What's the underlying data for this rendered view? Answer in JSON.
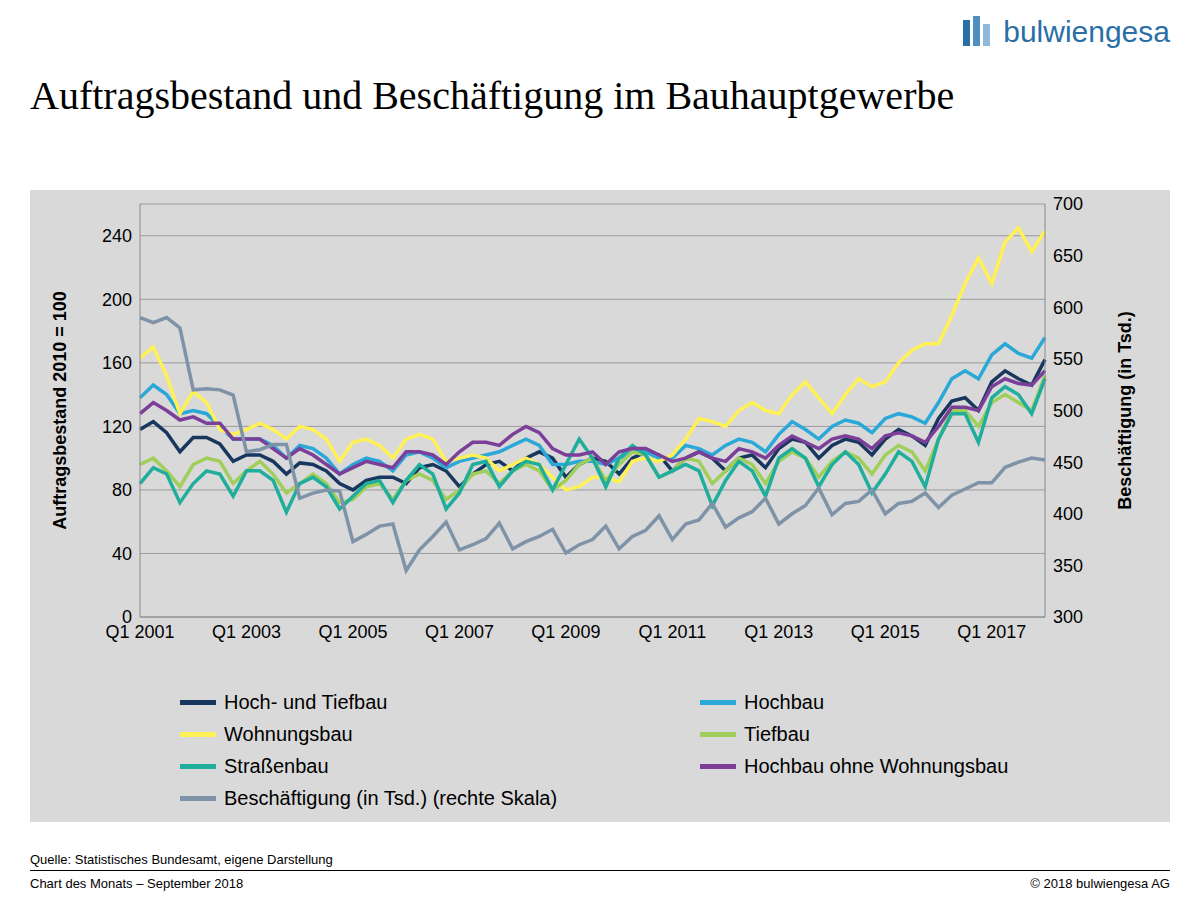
{
  "chart_data": {
    "type": "line",
    "title": "Auftragsbestand und Beschäftigung im Bauhauptgewerbe",
    "logo": "bulwiengesa",
    "source": "Quelle: Statistisches Bundesamt, eigene Darstellung",
    "footer_left": "Chart des Monats – September 2018",
    "footer_right": "© 2018 bulwiengesa AG",
    "y_label": "Auftragsbestand 2010 = 100",
    "y2_label": "Beschäftigung (in Tsd.)",
    "categories": [
      "Q1 2001",
      null,
      null,
      null,
      null,
      null,
      null,
      null,
      "Q1 2003",
      null,
      null,
      null,
      null,
      null,
      null,
      null,
      "Q1 2005",
      null,
      null,
      null,
      null,
      null,
      null,
      null,
      "Q1 2007",
      null,
      null,
      null,
      null,
      null,
      null,
      null,
      "Q1 2009",
      null,
      null,
      null,
      null,
      null,
      null,
      null,
      "Q1 2011",
      null,
      null,
      null,
      null,
      null,
      null,
      null,
      "Q1 2013",
      null,
      null,
      null,
      null,
      null,
      null,
      null,
      "Q1 2015",
      null,
      null,
      null,
      null,
      null,
      null,
      null,
      "Q1 2017",
      null,
      null,
      null,
      null
    ],
    "ylim": [
      0,
      260
    ],
    "yticks": [
      0,
      40,
      80,
      120,
      160,
      200,
      240
    ],
    "y2lim": [
      300,
      700
    ],
    "y2ticks": [
      300,
      350,
      400,
      450,
      500,
      550,
      600,
      650,
      700
    ],
    "grid": true,
    "legend": "bottom",
    "series": [
      {
        "name": "Hoch- und Tiefbau",
        "color": "#17375e",
        "values": [
          118,
          123,
          116,
          104,
          113,
          113,
          109,
          98,
          102,
          102,
          98,
          90,
          97,
          96,
          92,
          84,
          80,
          86,
          88,
          88,
          84,
          94,
          96,
          92,
          82,
          90,
          96,
          98,
          92,
          100,
          104,
          100,
          88,
          96,
          100,
          98,
          90,
          100,
          104,
          102,
          92,
          100,
          104,
          100,
          92,
          100,
          102,
          94,
          106,
          112,
          110,
          100,
          108,
          112,
          110,
          102,
          112,
          118,
          114,
          108,
          125,
          136,
          138,
          130,
          148,
          155,
          150,
          146,
          162
        ]
      },
      {
        "name": "Hochbau",
        "color": "#2aa8d8",
        "values": [
          138,
          146,
          140,
          128,
          130,
          128,
          120,
          112,
          112,
          112,
          108,
          100,
          108,
          106,
          100,
          90,
          96,
          100,
          98,
          92,
          102,
          104,
          100,
          94,
          98,
          100,
          102,
          104,
          108,
          112,
          108,
          96,
          96,
          98,
          98,
          96,
          100,
          104,
          104,
          100,
          100,
          108,
          106,
          102,
          108,
          112,
          110,
          104,
          115,
          123,
          118,
          112,
          120,
          124,
          122,
          116,
          125,
          128,
          126,
          122,
          135,
          150,
          155,
          150,
          165,
          172,
          166,
          163,
          176
        ]
      },
      {
        "name": "Wohnungsbau",
        "color": "#fff155",
        "values": [
          163,
          170,
          152,
          128,
          142,
          135,
          118,
          115,
          118,
          122,
          118,
          112,
          120,
          118,
          112,
          98,
          110,
          112,
          108,
          100,
          112,
          115,
          112,
          98,
          100,
          102,
          100,
          92,
          96,
          100,
          96,
          88,
          80,
          82,
          88,
          88,
          85,
          98,
          100,
          98,
          102,
          112,
          125,
          123,
          120,
          130,
          135,
          130,
          128,
          140,
          148,
          138,
          128,
          140,
          150,
          145,
          148,
          160,
          168,
          172,
          172,
          190,
          210,
          226,
          210,
          236,
          245,
          230,
          243
        ]
      },
      {
        "name": "Tiefbau",
        "color": "#9fcf5a",
        "values": [
          96,
          100,
          92,
          82,
          96,
          100,
          98,
          84,
          92,
          98,
          90,
          78,
          84,
          90,
          84,
          72,
          74,
          82,
          84,
          74,
          86,
          90,
          86,
          74,
          80,
          90,
          92,
          84,
          92,
          96,
          92,
          80,
          86,
          96,
          100,
          86,
          96,
          104,
          102,
          88,
          92,
          100,
          98,
          84,
          92,
          100,
          96,
          84,
          98,
          104,
          100,
          88,
          98,
          104,
          100,
          90,
          102,
          108,
          104,
          92,
          112,
          130,
          130,
          120,
          135,
          140,
          135,
          130,
          152
        ]
      },
      {
        "name": "Straßenbau",
        "color": "#1fae9c",
        "values": [
          84,
          94,
          90,
          72,
          84,
          92,
          90,
          76,
          92,
          92,
          86,
          66,
          84,
          88,
          82,
          68,
          76,
          84,
          86,
          72,
          86,
          96,
          90,
          68,
          78,
          96,
          98,
          82,
          92,
          98,
          96,
          80,
          96,
          112,
          100,
          82,
          100,
          108,
          102,
          88,
          92,
          96,
          92,
          70,
          86,
          98,
          92,
          76,
          100,
          106,
          100,
          82,
          96,
          104,
          96,
          78,
          90,
          104,
          98,
          82,
          112,
          128,
          128,
          110,
          138,
          145,
          140,
          128,
          150
        ]
      },
      {
        "name": "Hochbau ohne Wohnungsbau",
        "color": "#7b3f99",
        "values": [
          128,
          135,
          130,
          124,
          126,
          122,
          122,
          112,
          112,
          112,
          106,
          100,
          106,
          102,
          96,
          90,
          94,
          98,
          96,
          94,
          104,
          104,
          102,
          96,
          104,
          110,
          110,
          108,
          115,
          120,
          116,
          106,
          102,
          102,
          104,
          96,
          104,
          106,
          106,
          102,
          98,
          100,
          104,
          100,
          98,
          106,
          104,
          100,
          108,
          114,
          110,
          106,
          112,
          114,
          112,
          106,
          114,
          116,
          114,
          110,
          120,
          132,
          132,
          130,
          145,
          150,
          147,
          146,
          155
        ]
      },
      {
        "name": "Beschäftigung (in Tsd.) (rechte Skala)",
        "color": "#7f93a8",
        "axis": "y2",
        "values": [
          590,
          585,
          590,
          580,
          520,
          521,
          520,
          515,
          460,
          462,
          467,
          467,
          415,
          420,
          423,
          422,
          373,
          380,
          388,
          390,
          345,
          365,
          378,
          392,
          365,
          370,
          376,
          391,
          366,
          373,
          378,
          385,
          362,
          370,
          375,
          388,
          366,
          378,
          384,
          398,
          375,
          390,
          394,
          410,
          387,
          396,
          402,
          415,
          390,
          400,
          408,
          425,
          399,
          410,
          412,
          423,
          400,
          410,
          412,
          420,
          406,
          418,
          424,
          430,
          430,
          445,
          450,
          454,
          452
        ]
      }
    ]
  }
}
